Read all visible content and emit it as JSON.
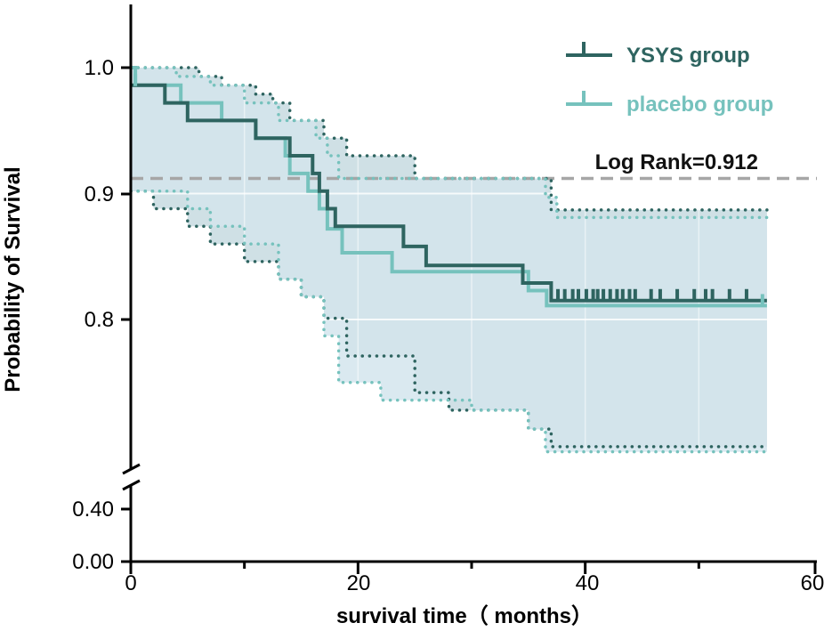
{
  "chart_data": {
    "type": "line",
    "subtype": "kaplan-meier",
    "xlabel": "survival time（ months）",
    "ylabel": "Probability of Survival",
    "xlim": [
      0,
      60
    ],
    "x_ticks": [
      "0",
      "20",
      "40",
      "60"
    ],
    "y_ticks": [
      "0.00",
      "0.40",
      "0.8",
      "0.9",
      "1.0"
    ],
    "axis_break": [
      0.4,
      0.7
    ],
    "annotation": "Log Rank=0.912",
    "reference_line_y": 0.912,
    "colors": {
      "ysys": "#2e6460",
      "placebo": "#76c2bd",
      "band": "#cfe1ea",
      "band_ysys_only": "#c6d7d9",
      "band_placebo_only": "#e2eff8",
      "reference": "#a6a6a6",
      "axis": "#000000"
    },
    "series": [
      {
        "name": "YSYS group",
        "steps": [
          [
            0,
            0.986
          ],
          [
            3,
            0.986
          ],
          [
            3,
            0.972
          ],
          [
            5,
            0.972
          ],
          [
            5,
            0.958
          ],
          [
            11,
            0.958
          ],
          [
            11,
            0.944
          ],
          [
            14,
            0.944
          ],
          [
            14,
            0.93
          ],
          [
            16,
            0.93
          ],
          [
            16,
            0.916
          ],
          [
            16.6,
            0.916
          ],
          [
            16.6,
            0.902
          ],
          [
            17.3,
            0.902
          ],
          [
            17.3,
            0.888
          ],
          [
            18,
            0.888
          ],
          [
            18,
            0.874
          ],
          [
            24,
            0.874
          ],
          [
            24,
            0.858
          ],
          [
            26,
            0.858
          ],
          [
            26,
            0.843
          ],
          [
            34.5,
            0.843
          ],
          [
            34.5,
            0.829
          ],
          [
            37,
            0.829
          ],
          [
            37,
            0.815
          ],
          [
            56,
            0.815
          ]
        ],
        "censor_times": [
          37.6,
          38.2,
          38.9,
          39.4,
          40.1,
          40.7,
          41.1,
          41.6,
          42.2,
          42.8,
          43.3,
          43.9,
          44.4,
          45.8,
          46.6,
          48.1,
          49.6,
          50.6,
          51.2,
          52.7,
          54.2
        ],
        "ci_upper": [
          [
            0,
            1.0
          ],
          [
            6,
            1.0
          ],
          [
            6,
            0.993
          ],
          [
            8,
            0.993
          ],
          [
            8,
            0.986
          ],
          [
            11,
            0.986
          ],
          [
            11,
            0.979
          ],
          [
            12.5,
            0.979
          ],
          [
            12.5,
            0.972
          ],
          [
            14,
            0.972
          ],
          [
            14,
            0.958
          ],
          [
            17,
            0.958
          ],
          [
            17,
            0.944
          ],
          [
            19,
            0.944
          ],
          [
            19,
            0.93
          ],
          [
            25,
            0.93
          ],
          [
            25,
            0.912
          ],
          [
            37,
            0.912
          ],
          [
            37,
            0.887
          ],
          [
            56,
            0.887
          ]
        ],
        "ci_lower": [
          [
            0,
            0.902
          ],
          [
            2,
            0.902
          ],
          [
            2,
            0.888
          ],
          [
            5,
            0.888
          ],
          [
            5,
            0.874
          ],
          [
            7,
            0.874
          ],
          [
            7,
            0.86
          ],
          [
            10,
            0.86
          ],
          [
            10,
            0.846
          ],
          [
            13,
            0.846
          ],
          [
            13,
            0.832
          ],
          [
            15,
            0.832
          ],
          [
            15,
            0.818
          ],
          [
            17,
            0.818
          ],
          [
            17,
            0.801
          ],
          [
            19,
            0.801
          ],
          [
            19,
            0.771
          ],
          [
            25,
            0.771
          ],
          [
            25,
            0.742
          ],
          [
            28,
            0.742
          ],
          [
            28,
            0.728
          ],
          [
            35,
            0.728
          ],
          [
            35,
            0.713
          ],
          [
            37,
            0.713
          ],
          [
            37,
            0.699
          ],
          [
            56,
            0.699
          ]
        ]
      },
      {
        "name": "placebo group",
        "steps": [
          [
            0,
            1.0
          ],
          [
            0.4,
            1.0
          ],
          [
            0.4,
            0.986
          ],
          [
            4.4,
            0.986
          ],
          [
            4.4,
            0.972
          ],
          [
            8,
            0.972
          ],
          [
            8,
            0.958
          ],
          [
            11,
            0.958
          ],
          [
            11,
            0.944
          ],
          [
            13.6,
            0.944
          ],
          [
            13.6,
            0.93
          ],
          [
            14,
            0.93
          ],
          [
            14,
            0.916
          ],
          [
            15.6,
            0.916
          ],
          [
            15.6,
            0.902
          ],
          [
            16.6,
            0.902
          ],
          [
            16.6,
            0.888
          ],
          [
            17.3,
            0.888
          ],
          [
            17.3,
            0.872
          ],
          [
            18.6,
            0.872
          ],
          [
            18.6,
            0.853
          ],
          [
            23,
            0.853
          ],
          [
            23,
            0.838
          ],
          [
            35,
            0.838
          ],
          [
            35,
            0.823
          ],
          [
            36.6,
            0.823
          ],
          [
            36.6,
            0.811
          ],
          [
            56,
            0.811
          ]
        ],
        "censor_times": [
          0.4,
          55.6
        ],
        "ci_upper": [
          [
            0,
            1.0
          ],
          [
            4,
            1.0
          ],
          [
            4,
            0.993
          ],
          [
            7,
            0.993
          ],
          [
            7,
            0.986
          ],
          [
            10,
            0.986
          ],
          [
            10,
            0.972
          ],
          [
            13,
            0.972
          ],
          [
            13,
            0.958
          ],
          [
            16.3,
            0.958
          ],
          [
            16.3,
            0.944
          ],
          [
            17.3,
            0.944
          ],
          [
            17.3,
            0.93
          ],
          [
            18.3,
            0.93
          ],
          [
            18.3,
            0.912
          ],
          [
            36.5,
            0.912
          ],
          [
            36.5,
            0.897
          ],
          [
            37.5,
            0.897
          ],
          [
            37.5,
            0.881
          ],
          [
            56,
            0.881
          ]
        ],
        "ci_lower": [
          [
            0,
            0.902
          ],
          [
            5,
            0.902
          ],
          [
            5,
            0.888
          ],
          [
            7,
            0.888
          ],
          [
            7,
            0.874
          ],
          [
            10,
            0.874
          ],
          [
            10,
            0.86
          ],
          [
            13,
            0.86
          ],
          [
            13,
            0.832
          ],
          [
            15,
            0.832
          ],
          [
            15,
            0.818
          ],
          [
            17,
            0.818
          ],
          [
            17,
            0.787
          ],
          [
            18.3,
            0.787
          ],
          [
            18.3,
            0.75
          ],
          [
            22,
            0.75
          ],
          [
            22,
            0.736
          ],
          [
            30,
            0.736
          ],
          [
            30,
            0.728
          ],
          [
            35,
            0.728
          ],
          [
            35,
            0.713
          ],
          [
            36.5,
            0.713
          ],
          [
            36.5,
            0.695
          ],
          [
            56,
            0.695
          ]
        ]
      }
    ]
  }
}
